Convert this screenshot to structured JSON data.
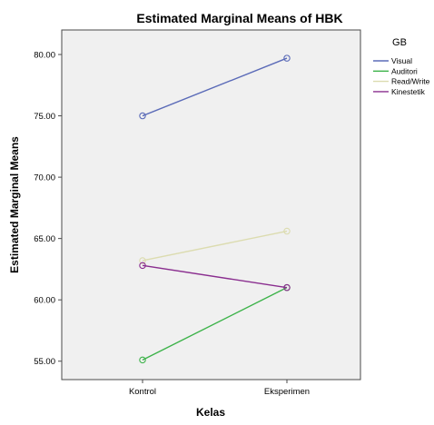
{
  "chart_data": {
    "type": "line",
    "title": "Estimated Marginal Means of HBK",
    "xlabel": "Kelas",
    "ylabel": "Estimated Marginal Means",
    "categories": [
      "Kontrol",
      "Eksperimen"
    ],
    "ylim": [
      53.5,
      82.0
    ],
    "yticks": [
      55.0,
      60.0,
      65.0,
      70.0,
      75.0,
      80.0
    ],
    "ytick_labels": [
      "55.00",
      "60.00",
      "65.00",
      "70.00",
      "75.00",
      "80.00"
    ],
    "grid": false,
    "plot_background": "#f0f0f0",
    "marker": "open-circle",
    "legend": {
      "title": "GB",
      "position": "right"
    },
    "series": [
      {
        "name": "Visual",
        "values": [
          75.0,
          79.7
        ],
        "color": "#5b6bb8"
      },
      {
        "name": "Auditori",
        "values": [
          55.1,
          61.0
        ],
        "color": "#3db34a"
      },
      {
        "name": "Read/Write",
        "values": [
          63.2,
          65.6
        ],
        "color": "#dcdcb0"
      },
      {
        "name": "Kinestetik",
        "values": [
          62.8,
          61.0
        ],
        "color": "#8a2e8f"
      }
    ]
  }
}
